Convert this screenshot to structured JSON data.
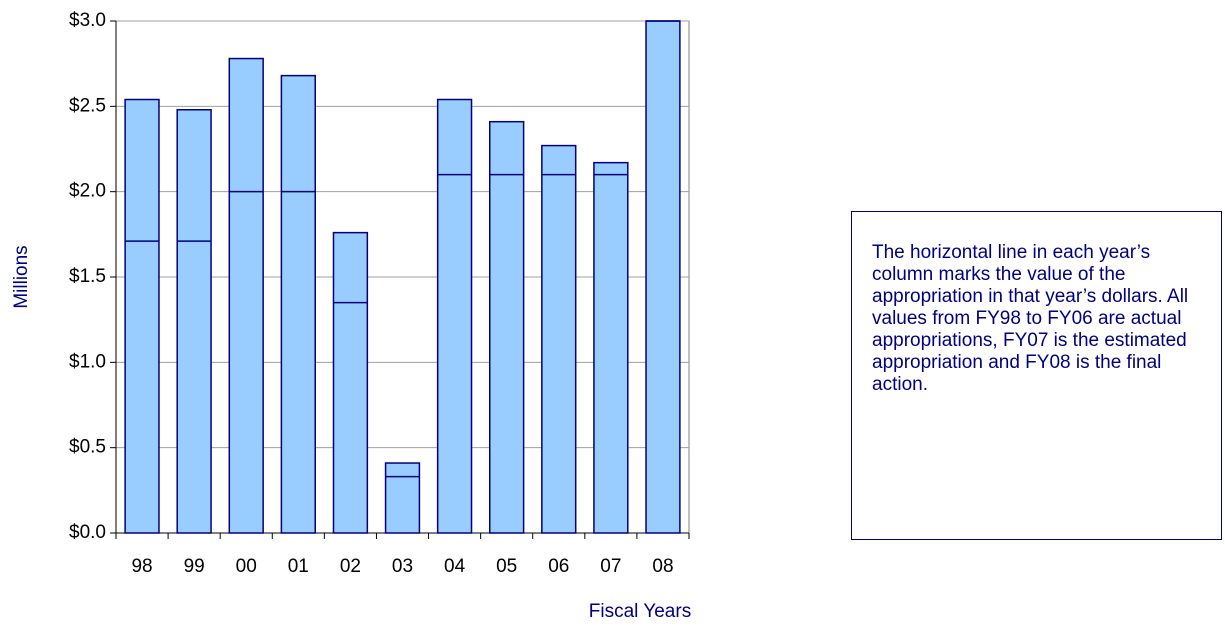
{
  "chart_data": {
    "type": "bar",
    "x_label": "Fiscal Years",
    "y_label": "Millions",
    "categories": [
      "98",
      "99",
      "00",
      "01",
      "02",
      "03",
      "04",
      "05",
      "06",
      "07",
      "08"
    ],
    "values": [
      2.54,
      2.48,
      2.78,
      2.68,
      1.76,
      0.41,
      2.54,
      2.41,
      2.27,
      2.17,
      3.0
    ],
    "marker_values": [
      1.71,
      1.71,
      2.0,
      2.0,
      1.35,
      0.33,
      2.1,
      2.1,
      2.1,
      2.1,
      3.0
    ],
    "color": "#99ccff",
    "edge_color": "#000080",
    "ylim": [
      0,
      3.0
    ],
    "yticks": [
      {
        "value": 0,
        "label": "$0.0"
      },
      {
        "value": 0.5,
        "label": "$0.5"
      },
      {
        "value": 1.0,
        "label": "$1.0"
      },
      {
        "value": 1.5,
        "label": "$1.5"
      },
      {
        "value": 2.0,
        "label": "$2.0"
      },
      {
        "value": 2.5,
        "label": "$2.5"
      },
      {
        "value": 3.0,
        "label": "$3.0"
      }
    ],
    "grid": true,
    "annotation": "The horizontal line in each year’s column marks the value of the appropriation in that year’s dollars. All values from FY98 to FY06 are actual appropriations, FY07 is the estimated appropriation and FY08 is the final action."
  }
}
